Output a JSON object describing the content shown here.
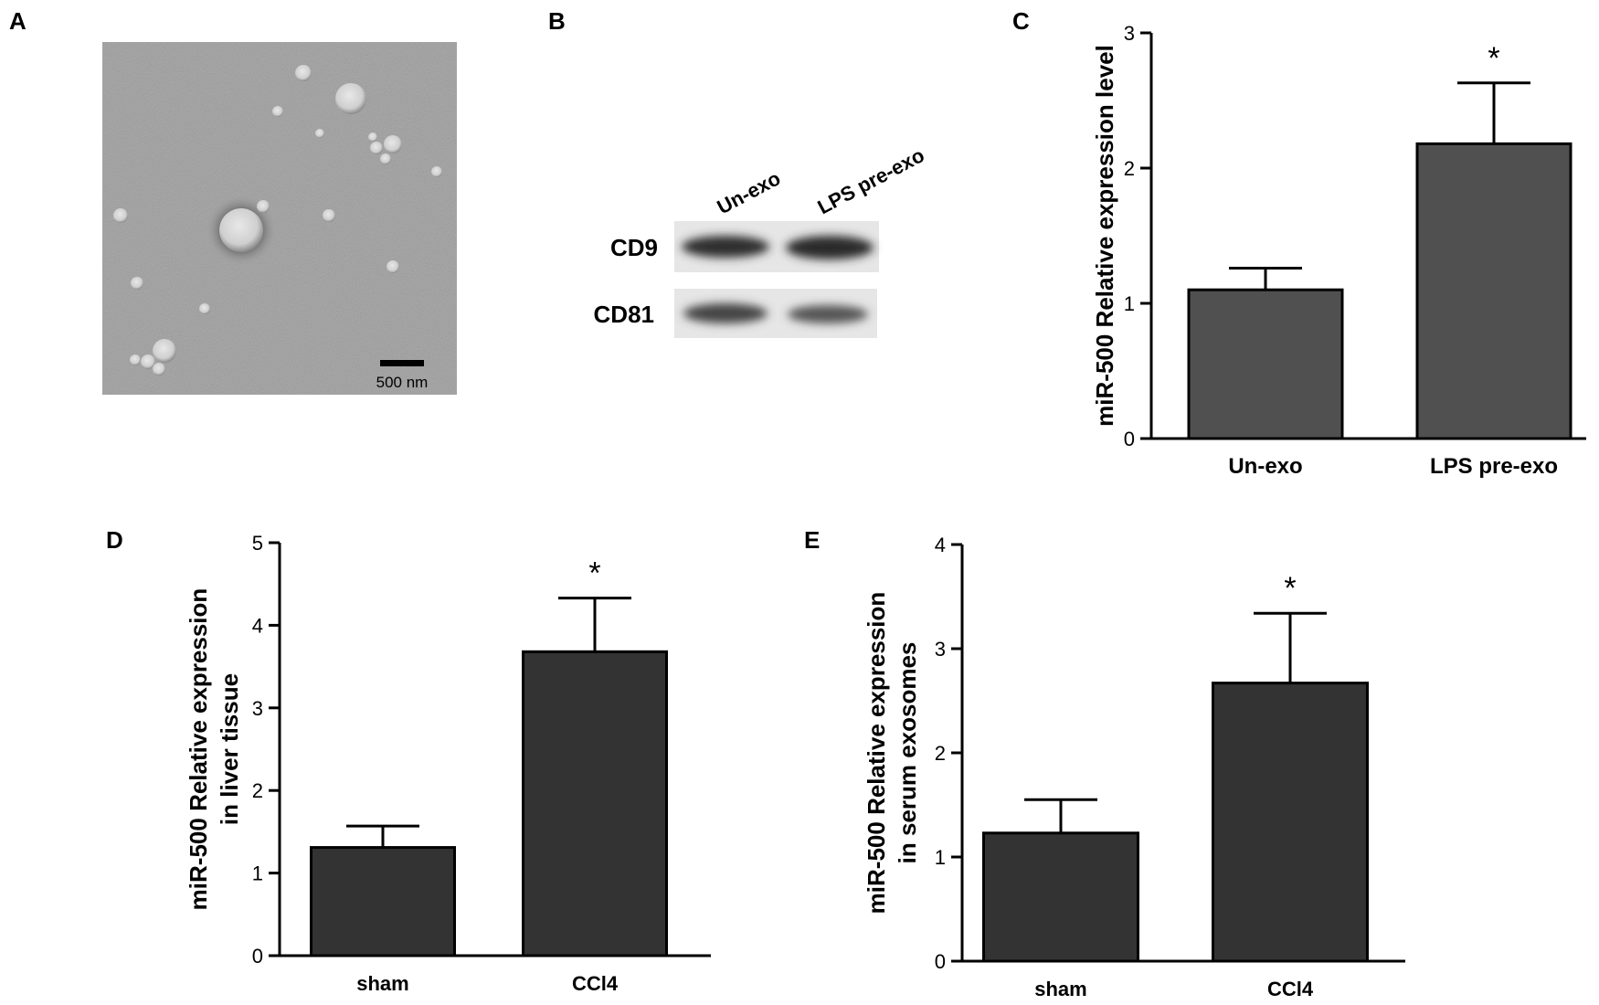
{
  "panels": {
    "a": {
      "letter": "A",
      "scale_bar_label": "500 nm"
    },
    "b": {
      "letter": "B",
      "lanes": [
        "Un-exo",
        "LPS pre-exo"
      ],
      "rows": [
        "CD9",
        "CD81"
      ]
    },
    "c": {
      "letter": "C"
    },
    "d": {
      "letter": "D"
    },
    "e": {
      "letter": "E"
    }
  },
  "colors": {
    "bar_fill": "#333333",
    "bar_fill_c": "#505050",
    "em_background": "#9a9a9a"
  },
  "chart_data": [
    {
      "id": "chart-c",
      "type": "bar",
      "categories": [
        "Un-exo",
        "LPS pre-exo"
      ],
      "values": [
        1.1,
        2.18
      ],
      "errors": [
        0.16,
        0.45
      ],
      "significance": [
        "",
        "*"
      ],
      "ylabel": "miR-500 Relative  expression level",
      "ylim": [
        0,
        3
      ],
      "yticks": [
        "0",
        "1",
        "2",
        "3"
      ]
    },
    {
      "id": "chart-d",
      "type": "bar",
      "categories": [
        "sham",
        "CCl4"
      ],
      "values": [
        1.31,
        3.68
      ],
      "errors": [
        0.26,
        0.65
      ],
      "significance": [
        "",
        "*"
      ],
      "ylabel": "miR-500 Relative  expression",
      "ylabel2": "in liver tissue",
      "ylim": [
        0,
        5
      ],
      "yticks": [
        "0",
        "1",
        "2",
        "3",
        "4",
        "5"
      ]
    },
    {
      "id": "chart-e",
      "type": "bar",
      "categories": [
        "sham",
        "CCl4"
      ],
      "values": [
        1.23,
        2.67
      ],
      "errors": [
        0.32,
        0.67
      ],
      "significance": [
        "",
        "*"
      ],
      "ylabel": "miR-500 Relative  expression",
      "ylabel2": "in serum exosomes",
      "ylim": [
        0,
        4
      ],
      "yticks": [
        "0",
        "1",
        "2",
        "3",
        "4"
      ]
    }
  ]
}
